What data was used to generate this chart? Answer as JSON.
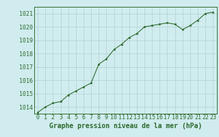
{
  "x": [
    0,
    1,
    2,
    3,
    4,
    5,
    6,
    7,
    8,
    9,
    10,
    11,
    12,
    13,
    14,
    15,
    16,
    17,
    18,
    19,
    20,
    21,
    22,
    23
  ],
  "y": [
    1013.6,
    1014.0,
    1014.3,
    1014.4,
    1014.9,
    1015.2,
    1015.5,
    1015.8,
    1017.2,
    1017.6,
    1018.3,
    1018.7,
    1019.2,
    1019.5,
    1020.0,
    1020.1,
    1020.2,
    1020.3,
    1020.2,
    1019.8,
    1020.1,
    1020.5,
    1021.0,
    1021.1
  ],
  "ylim": [
    1013.5,
    1021.5
  ],
  "yticks": [
    1014,
    1015,
    1016,
    1017,
    1018,
    1019,
    1020,
    1021
  ],
  "xlim": [
    -0.5,
    23.5
  ],
  "xticks": [
    0,
    1,
    2,
    3,
    4,
    5,
    6,
    7,
    8,
    9,
    10,
    11,
    12,
    13,
    14,
    15,
    16,
    17,
    18,
    19,
    20,
    21,
    22,
    23
  ],
  "line_color": "#2d6a2d",
  "marker_color": "#2d6a2d",
  "bg_color": "#d0ecee",
  "grid_color": "#b0d0d0",
  "xlabel": "Graphe pression niveau de la mer (hPa)",
  "xlabel_color": "#2d6a2d",
  "tick_color": "#2d6a2d",
  "axis_label_fontsize": 7,
  "tick_fontsize": 6
}
